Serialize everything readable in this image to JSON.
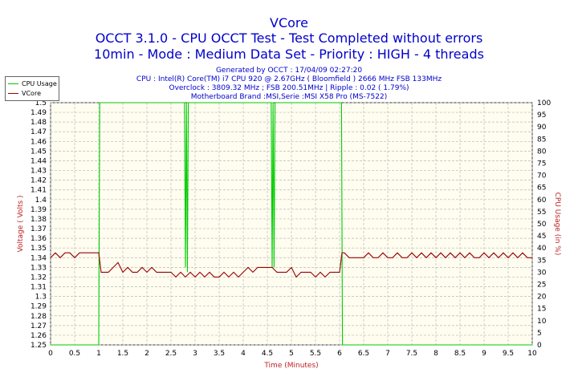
{
  "header": {
    "title": "VCore",
    "subtitle1": "OCCT 3.1.0 - CPU OCCT Test - Test Completed without errors",
    "subtitle2": "10min - Mode : Medium Data Set - Priority : HIGH - 4 threads",
    "generated": "Generated by OCCT : 17/04/09 02:27:20",
    "cpu_info": "CPU : Intel(R) Core(TM) i7 CPU 920 @ 2.67GHz ( Bloomfield ) 2666 MHz FSB 133MHz",
    "overclock": "Overclock : 3809.32 MHz ; FSB 200.51MHz | Ripple : 0.02 ( 1.79%)",
    "motherboard": "Motherboard Brand :MSI,Serie :MSI X58 Pro (MS-7522)"
  },
  "colors": {
    "background": "#fffdf0",
    "cpu_usage": "#00cc00",
    "vcore": "#990000",
    "title": "#0000cc",
    "axis_label": "#bb2222"
  },
  "chart_data": {
    "type": "line",
    "xlabel": "Time (Minutes)",
    "ylabel": "Voltage ( Volts )",
    "ylabel_right": "CPU Usage (in %)",
    "xlim": [
      0,
      10
    ],
    "ylim": [
      1.25,
      1.5
    ],
    "ylim_right": [
      0,
      100
    ],
    "grid": true,
    "legend_position": "top-left",
    "x_ticks": [
      "0",
      "0.5",
      "1",
      "1.5",
      "2",
      "2.5",
      "3",
      "3.5",
      "4",
      "4.5",
      "5",
      "5.5",
      "6",
      "6.5",
      "7",
      "7.5",
      "8",
      "8.5",
      "9",
      "9.5",
      "10"
    ],
    "y_ticks": [
      "1.25",
      "1.26",
      "1.27",
      "1.28",
      "1.29",
      "1.3",
      "1.31",
      "1.32",
      "1.33",
      "1.34",
      "1.35",
      "1.36",
      "1.37",
      "1.38",
      "1.39",
      "1.4",
      "1.41",
      "1.42",
      "1.43",
      "1.44",
      "1.45",
      "1.46",
      "1.47",
      "1.48",
      "1.49",
      "1.5"
    ],
    "y_ticks_right": [
      "0",
      "5",
      "10",
      "15",
      "20",
      "25",
      "30",
      "35",
      "40",
      "45",
      "50",
      "55",
      "60",
      "65",
      "70",
      "75",
      "80",
      "85",
      "90",
      "95",
      "100"
    ],
    "series": [
      {
        "name": "CPU Usage",
        "axis": "right",
        "x": [
          0,
          1.0,
          1.02,
          1.04,
          1.06,
          2.78,
          2.8,
          2.82,
          2.84,
          2.86,
          4.58,
          4.6,
          4.62,
          4.64,
          4.66,
          6.02,
          6.04,
          6.06,
          10
        ],
        "y": [
          0,
          0,
          100,
          100,
          100,
          100,
          32,
          100,
          30,
          100,
          100,
          32,
          100,
          32,
          100,
          100,
          100,
          0,
          0
        ]
      },
      {
        "name": "VCore",
        "axis": "left",
        "x": [
          0,
          0.1,
          0.2,
          0.3,
          0.4,
          0.5,
          0.6,
          0.7,
          0.8,
          0.9,
          1.0,
          1.05,
          1.2,
          1.3,
          1.4,
          1.5,
          1.6,
          1.7,
          1.8,
          1.9,
          2.0,
          2.1,
          2.2,
          2.3,
          2.4,
          2.5,
          2.6,
          2.7,
          2.8,
          2.9,
          3.0,
          3.1,
          3.2,
          3.3,
          3.4,
          3.5,
          3.6,
          3.7,
          3.8,
          3.9,
          4.0,
          4.1,
          4.2,
          4.3,
          4.4,
          4.5,
          4.6,
          4.7,
          4.8,
          4.9,
          5.0,
          5.1,
          5.2,
          5.3,
          5.4,
          5.5,
          5.6,
          5.7,
          5.8,
          5.9,
          6.0,
          6.05,
          6.1,
          6.2,
          6.3,
          6.4,
          6.5,
          6.6,
          6.7,
          6.8,
          6.9,
          7.0,
          7.1,
          7.2,
          7.3,
          7.4,
          7.5,
          7.6,
          7.7,
          7.8,
          7.9,
          8.0,
          8.1,
          8.2,
          8.3,
          8.4,
          8.5,
          8.6,
          8.7,
          8.8,
          8.9,
          9.0,
          9.1,
          9.2,
          9.3,
          9.4,
          9.5,
          9.6,
          9.7,
          9.8,
          9.9,
          10
        ],
        "y": [
          1.34,
          1.345,
          1.34,
          1.345,
          1.345,
          1.34,
          1.345,
          1.345,
          1.345,
          1.345,
          1.345,
          1.325,
          1.325,
          1.33,
          1.335,
          1.325,
          1.33,
          1.325,
          1.325,
          1.33,
          1.325,
          1.33,
          1.325,
          1.325,
          1.325,
          1.325,
          1.32,
          1.325,
          1.32,
          1.325,
          1.32,
          1.325,
          1.32,
          1.325,
          1.32,
          1.32,
          1.325,
          1.32,
          1.325,
          1.32,
          1.325,
          1.33,
          1.325,
          1.33,
          1.33,
          1.33,
          1.33,
          1.325,
          1.325,
          1.325,
          1.33,
          1.32,
          1.325,
          1.325,
          1.325,
          1.32,
          1.325,
          1.32,
          1.325,
          1.325,
          1.325,
          1.345,
          1.345,
          1.34,
          1.34,
          1.34,
          1.34,
          1.345,
          1.34,
          1.34,
          1.345,
          1.34,
          1.34,
          1.345,
          1.34,
          1.34,
          1.345,
          1.34,
          1.345,
          1.34,
          1.345,
          1.34,
          1.345,
          1.34,
          1.345,
          1.34,
          1.345,
          1.34,
          1.345,
          1.34,
          1.34,
          1.345,
          1.34,
          1.345,
          1.34,
          1.345,
          1.34,
          1.345,
          1.34,
          1.345,
          1.34,
          1.34
        ]
      }
    ]
  }
}
